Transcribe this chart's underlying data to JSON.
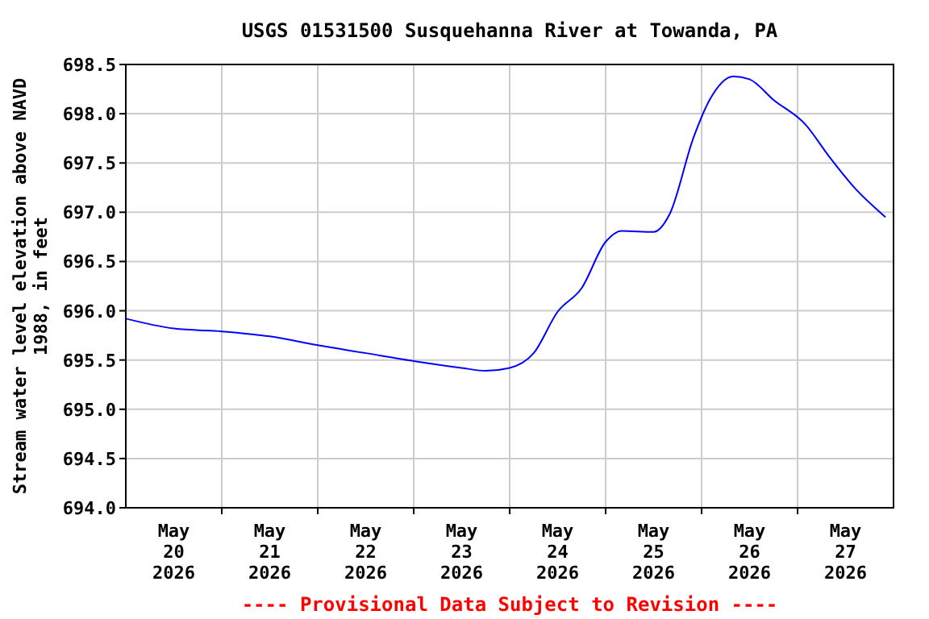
{
  "chart_data": {
    "type": "line",
    "title": "USGS 01531500 Susquehanna River at Towanda, PA",
    "ylabel": "Stream water level elevation above NAVD 1988, in feet",
    "annotations": [
      "---- Provisional Data Subject to Revision ----"
    ],
    "x": [
      "2026-05-20T00:00",
      "2026-05-20T12:00",
      "2026-05-21T00:00",
      "2026-05-21T12:00",
      "2026-05-22T00:00",
      "2026-05-22T12:00",
      "2026-05-23T00:00",
      "2026-05-23T12:00",
      "2026-05-23T18:00",
      "2026-05-24T00:00",
      "2026-05-24T06:00",
      "2026-05-24T12:00",
      "2026-05-24T18:00",
      "2026-05-25T00:00",
      "2026-05-25T04:00",
      "2026-05-25T12:00",
      "2026-05-25T16:00",
      "2026-05-25T22:00",
      "2026-05-26T02:00",
      "2026-05-26T08:00",
      "2026-05-26T12:00",
      "2026-05-26T18:00",
      "2026-05-27T02:00",
      "2026-05-27T08:00",
      "2026-05-27T14:00",
      "2026-05-27T22:00"
    ],
    "series": [
      {
        "color": "#0000ff",
        "values": [
          695.92,
          695.82,
          695.79,
          695.74,
          695.65,
          695.57,
          695.49,
          695.42,
          695.39,
          695.42,
          695.57,
          695.99,
          696.23,
          696.7,
          696.81,
          696.8,
          696.98,
          697.76,
          698.14,
          698.38,
          698.35,
          698.14,
          697.89,
          697.56,
          697.26,
          696.95
        ]
      }
    ],
    "xlim": [
      "2026-05-20T00:00",
      "2026-05-28T00:00"
    ],
    "xticks": [
      {
        "value": "2026-05-21T00:00",
        "label": null
      },
      {
        "value": "2026-05-22T00:00",
        "label": null
      },
      {
        "value": "2026-05-23T00:00",
        "label": null
      },
      {
        "value": "2026-05-24T00:00",
        "label": null
      },
      {
        "value": "2026-05-25T00:00",
        "label": null
      },
      {
        "value": "2026-05-26T00:00",
        "label": null
      },
      {
        "value": "2026-05-27T00:00",
        "label": null
      },
      {
        "value": "2026-05-20T12:00",
        "label": "May 20 2026"
      },
      {
        "value": "2026-05-21T12:00",
        "label": "May 21 2026"
      },
      {
        "value": "2026-05-22T12:00",
        "label": "May 22 2026"
      },
      {
        "value": "2026-05-23T12:00",
        "label": "May 23 2026"
      },
      {
        "value": "2026-05-24T12:00",
        "label": "May 24 2026"
      },
      {
        "value": "2026-05-25T12:00",
        "label": "May 25 2026"
      },
      {
        "value": "2026-05-26T12:00",
        "label": "May 26 2026"
      },
      {
        "value": "2026-05-27T12:00",
        "label": "May 27 2026"
      }
    ],
    "ylim": [
      694.0,
      698.5
    ],
    "yticks": [
      {
        "value": 694.0,
        "label": "694.0"
      },
      {
        "value": 694.5,
        "label": "694.5"
      },
      {
        "value": 695.0,
        "label": "695.0"
      },
      {
        "value": 695.5,
        "label": "695.5"
      },
      {
        "value": 696.0,
        "label": "696.0"
      },
      {
        "value": 696.5,
        "label": "696.5"
      },
      {
        "value": 697.0,
        "label": "697.0"
      },
      {
        "value": 697.5,
        "label": "697.5"
      },
      {
        "value": 698.0,
        "label": "698.0"
      },
      {
        "value": 698.5,
        "label": "698.5"
      }
    ],
    "grid": true,
    "marker": "none",
    "line_style": "solid"
  }
}
